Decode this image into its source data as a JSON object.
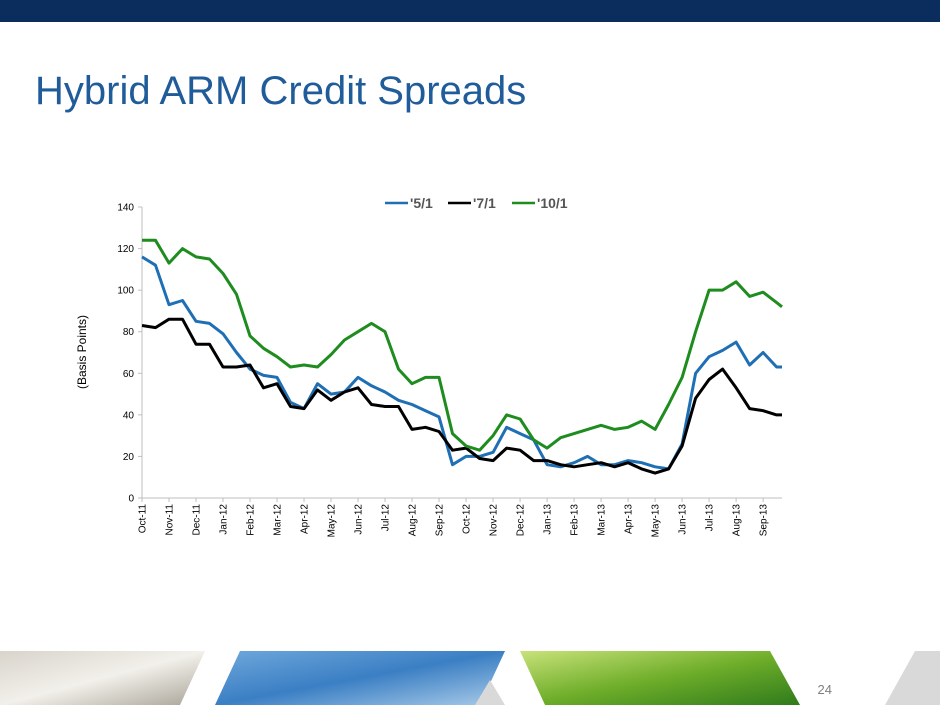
{
  "title": "Hybrid ARM Credit Spreads",
  "page_number": "24",
  "chart_data": {
    "type": "line",
    "y_axis_label": "(Basis Points)",
    "x": [
      0,
      0.5,
      1,
      1.5,
      2,
      2.5,
      3,
      3.5,
      4,
      4.5,
      5,
      5.5,
      6,
      6.5,
      7,
      7.5,
      8,
      8.5,
      9,
      9.5,
      10,
      10.5,
      11,
      11.5,
      12,
      12.5,
      13,
      13.5,
      14,
      14.5,
      15,
      15.5,
      16,
      16.5,
      17,
      17.5,
      18,
      18.5,
      19,
      19.5,
      20,
      20.5,
      21,
      21.5,
      22,
      22.5,
      23,
      23.5,
      23.7
    ],
    "xlim": [
      0,
      23.7
    ],
    "xticks": [
      {
        "value": 0,
        "label": "Oct-11"
      },
      {
        "value": 1,
        "label": "Nov-11"
      },
      {
        "value": 2,
        "label": "Dec-11"
      },
      {
        "value": 3,
        "label": "Jan-12"
      },
      {
        "value": 4,
        "label": "Feb-12"
      },
      {
        "value": 5,
        "label": "Mar-12"
      },
      {
        "value": 6,
        "label": "Apr-12"
      },
      {
        "value": 7,
        "label": "May-12"
      },
      {
        "value": 8,
        "label": "Jun-12"
      },
      {
        "value": 9,
        "label": "Jul-12"
      },
      {
        "value": 10,
        "label": "Aug-12"
      },
      {
        "value": 11,
        "label": "Sep-12"
      },
      {
        "value": 12,
        "label": "Oct-12"
      },
      {
        "value": 13,
        "label": "Nov-12"
      },
      {
        "value": 14,
        "label": "Dec-12"
      },
      {
        "value": 15,
        "label": "Jan-13"
      },
      {
        "value": 16,
        "label": "Feb-13"
      },
      {
        "value": 17,
        "label": "Mar-13"
      },
      {
        "value": 18,
        "label": "Apr-13"
      },
      {
        "value": 19,
        "label": "May-13"
      },
      {
        "value": 20,
        "label": "Jun-13"
      },
      {
        "value": 21,
        "label": "Jul-13"
      },
      {
        "value": 22,
        "label": "Aug-13"
      },
      {
        "value": 23,
        "label": "Sep-13"
      }
    ],
    "ylim": [
      0,
      140
    ],
    "yticks": [
      0,
      20,
      40,
      60,
      80,
      100,
      120,
      140
    ],
    "grid": false,
    "legend": "top",
    "series": [
      {
        "name": "'5/1",
        "color": "#1f6fb5",
        "values": [
          116,
          112,
          93,
          95,
          85,
          84,
          79,
          70,
          62,
          59,
          58,
          46,
          43,
          55,
          50,
          51,
          58,
          54,
          51,
          47,
          45,
          42,
          39,
          16,
          20,
          20,
          22,
          34,
          31,
          28,
          16,
          15,
          17,
          20,
          16,
          16,
          18,
          17,
          15,
          14,
          26,
          60,
          68,
          71,
          75,
          64,
          70,
          63,
          63
        ]
      },
      {
        "name": "'7/1",
        "color": "#000000",
        "values": [
          83,
          82,
          86,
          86,
          74,
          74,
          63,
          63,
          64,
          53,
          55,
          44,
          43,
          52,
          47,
          51,
          53,
          45,
          44,
          44,
          33,
          34,
          32,
          23,
          24,
          19,
          18,
          24,
          23,
          18,
          18,
          16,
          15,
          16,
          17,
          15,
          17,
          14,
          12,
          14,
          25,
          48,
          57,
          62,
          53,
          43,
          42,
          40,
          40
        ]
      },
      {
        "name": "'10/1",
        "color": "#1e8c1e",
        "values": [
          124,
          124,
          113,
          120,
          116,
          115,
          108,
          98,
          78,
          72,
          68,
          63,
          64,
          63,
          69,
          76,
          80,
          84,
          80,
          62,
          55,
          58,
          58,
          31,
          25,
          23,
          30,
          40,
          38,
          28,
          24,
          29,
          31,
          33,
          35,
          33,
          34,
          37,
          33,
          45,
          58,
          80,
          100,
          100,
          104,
          97,
          99,
          94,
          92
        ]
      }
    ]
  }
}
